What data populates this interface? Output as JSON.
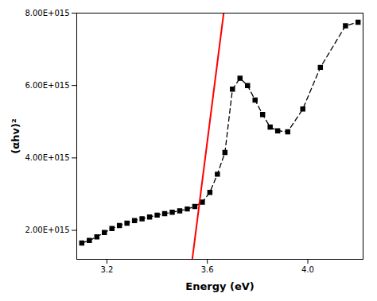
{
  "chart_data": {
    "type": "line",
    "xlabel": "Energy (eV)",
    "ylabel": "(αhv)²",
    "xlim": [
      3.08,
      4.22
    ],
    "ylim": [
      1200000000000000.0,
      8000000000000000.0
    ],
    "xticks": [
      3.2,
      3.6,
      {
        "value": 4.0,
        "label": "4.0"
      }
    ],
    "yticks": [
      {
        "value": 2000000000000000.0,
        "label": "2.00E+015"
      },
      {
        "value": 4000000000000000.0,
        "label": "4.00E+015"
      },
      {
        "value": 6000000000000000.0,
        "label": "6.00E+015"
      },
      {
        "value": 8000000000000000.0,
        "label": "8.00E+015"
      }
    ],
    "grid": false,
    "series": [
      {
        "color": "#000000",
        "marker": "square",
        "line_style": "dashed",
        "x": [
          3.1,
          3.13,
          3.16,
          3.19,
          3.22,
          3.25,
          3.28,
          3.31,
          3.34,
          3.37,
          3.4,
          3.43,
          3.46,
          3.49,
          3.52,
          3.55,
          3.58,
          3.61,
          3.64,
          3.67,
          3.7,
          3.73,
          3.76,
          3.79,
          3.82,
          3.85,
          3.88,
          3.92,
          3.98,
          4.05,
          4.15,
          4.2
        ],
        "values": [
          1650000000000000.0,
          1720000000000000.0,
          1820000000000000.0,
          1940000000000000.0,
          2050000000000000.0,
          2130000000000000.0,
          2200000000000000.0,
          2270000000000000.0,
          2320000000000000.0,
          2370000000000000.0,
          2420000000000000.0,
          2460000000000000.0,
          2500000000000000.0,
          2540000000000000.0,
          2590000000000000.0,
          2660000000000000.0,
          2780000000000000.0,
          3050000000000000.0,
          3550000000000000.0,
          4150000000000000.0,
          5900000000000000.0,
          6200000000000000.0,
          6000000000000000.0,
          5600000000000000.0,
          5200000000000000.0,
          4850000000000000.0,
          4750000000000000.0,
          4720000000000000.0,
          5350000000000000.0,
          6500000000000000.0,
          7650000000000000.0,
          7750000000000000.0
        ]
      },
      {
        "color": "#FF0000",
        "line_style": "solid",
        "x": [
          3.54,
          3.665
        ],
        "values": [
          1200000000000000.0,
          8000000000000000.0
        ]
      }
    ]
  }
}
